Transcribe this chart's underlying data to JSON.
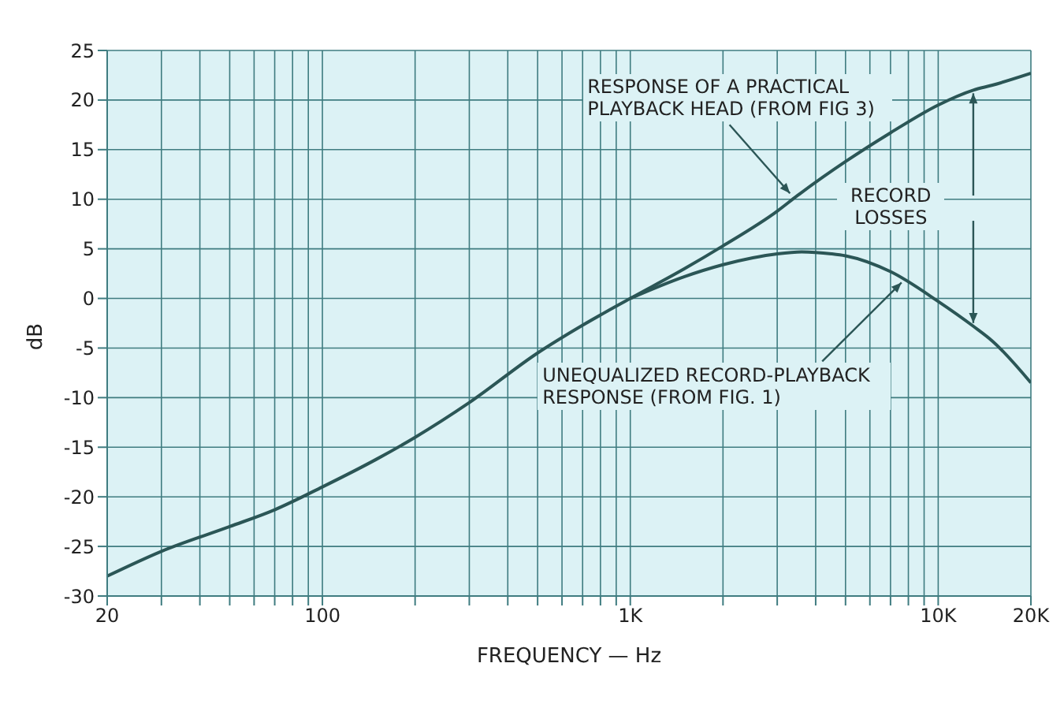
{
  "chart_data": {
    "type": "line",
    "xlabel": "FREQUENCY — Hz",
    "ylabel": "dB",
    "log": "x",
    "grid": true,
    "marker": "none",
    "line_style": "solid",
    "xlim": [
      20,
      20000
    ],
    "ylim": [
      -30,
      25
    ],
    "xticks": [
      20,
      {
        "value": 30,
        "label": null
      },
      {
        "value": 40,
        "label": null
      },
      {
        "value": 50,
        "label": null
      },
      {
        "value": 60,
        "label": null
      },
      {
        "value": 70,
        "label": null
      },
      {
        "value": 80,
        "label": null
      },
      {
        "value": 90,
        "label": null
      },
      100,
      {
        "value": 200,
        "label": null
      },
      {
        "value": 300,
        "label": null
      },
      {
        "value": 400,
        "label": null
      },
      {
        "value": 500,
        "label": null
      },
      {
        "value": 600,
        "label": null
      },
      {
        "value": 700,
        "label": null
      },
      {
        "value": 800,
        "label": null
      },
      {
        "value": 900,
        "label": null
      },
      {
        "value": 1000,
        "label": "1K"
      },
      {
        "value": 2000,
        "label": null
      },
      {
        "value": 3000,
        "label": null
      },
      {
        "value": 4000,
        "label": null
      },
      {
        "value": 5000,
        "label": null
      },
      {
        "value": 6000,
        "label": null
      },
      {
        "value": 7000,
        "label": null
      },
      {
        "value": 8000,
        "label": null
      },
      {
        "value": 9000,
        "label": null
      },
      {
        "value": 10000,
        "label": "10K"
      },
      {
        "value": 20000,
        "label": "20K"
      }
    ],
    "yticks": [
      -30,
      -25,
      -20,
      -15,
      -10,
      -5,
      0,
      5,
      10,
      15,
      20,
      25
    ],
    "series": [
      {
        "color": "#2b5656",
        "x": [
          20,
          30,
          50,
          70,
          100,
          150,
          200,
          300,
          500,
          700,
          1000,
          1500,
          2000,
          3000,
          3500,
          5000,
          7000,
          10000,
          13000,
          15000,
          20000
        ],
        "values": [
          -28,
          -25.5,
          -23,
          -21.3,
          -19,
          -16.2,
          -14,
          -10.5,
          -5.5,
          -2.7,
          0,
          3,
          5.3,
          8.8,
          10.4,
          13.8,
          16.7,
          19.5,
          21,
          21.5,
          22.7
        ]
      },
      {
        "color": "#2b5656",
        "x": [
          1000,
          1500,
          2000,
          2500,
          3000,
          3600,
          4500,
          5000,
          7000,
          10000,
          13000,
          15000,
          20000
        ],
        "values": [
          0,
          2.2,
          3.4,
          4.1,
          4.5,
          4.7,
          4.5,
          4.3,
          2.7,
          -0.3,
          -2.8,
          -4.3,
          -8.5
        ]
      }
    ],
    "annotations": [
      {
        "text": "RESPONSE OF A PRACTICAL PLAYBACK HEAD (FROM FIG 3)",
        "x": 3300,
        "y": 10.6
      },
      "RECORD LOSSES",
      {
        "text": "UNEQUALIZED RECORD-PLAYBACK RESPONSE (FROM FIG. 1)",
        "x": 7600,
        "y": 1.6
      }
    ]
  }
}
